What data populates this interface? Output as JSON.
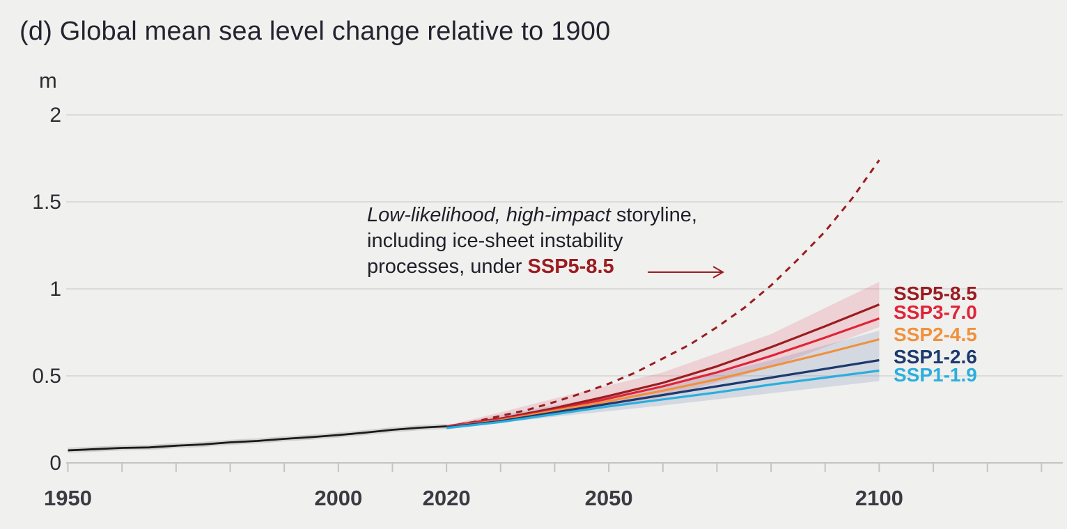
{
  "title": "(d) Global mean sea level change relative to 1900",
  "unit_label": "m",
  "annotation": {
    "line1_italic": "Low-likelihood, high-impact",
    "line1_rest": " storyline,",
    "line2": "including ice-sheet instability",
    "line3_prefix": "processes, under ",
    "line3_scenario": "SSP5-8.5"
  },
  "colors": {
    "background": "#f0f0ee",
    "gridline": "#dbdbd9",
    "axis": "#c4c4c2",
    "text": "#242430",
    "tick_label": "#3a3a42",
    "historical_line": "#1a1a1a",
    "historical_band": "rgba(0,0,0,0.12)",
    "storyline_red": "#9b1c20",
    "pink_band": "rgba(228,60,85,0.17)",
    "blue_band": "rgba(90,110,165,0.18)"
  },
  "chart_data": {
    "type": "line",
    "title": "(d) Global mean sea level change relative to 1900",
    "xlabel": "",
    "ylabel": "m",
    "xlim": [
      1950,
      2130
    ],
    "ylim": [
      0,
      2.15
    ],
    "yticks": [
      0,
      0.5,
      1,
      1.5,
      2
    ],
    "ytick_labels": [
      "0",
      "0.5",
      "1",
      "1.5",
      "2"
    ],
    "xtick_labels": [
      1950,
      2000,
      2020,
      2050,
      2100
    ],
    "xticks_minor_start": 1950,
    "xticks_minor_end": 2130,
    "xticks_minor_step": 10,
    "grid": "horizontal",
    "legend_position": "right-of-line-ends",
    "historical": {
      "name": "observed",
      "color": "#1a1a1a",
      "band_halfwidth_m": 0.015,
      "x": [
        1950,
        1955,
        1960,
        1965,
        1970,
        1975,
        1980,
        1985,
        1990,
        1995,
        2000,
        2005,
        2010,
        2015,
        2020
      ],
      "values": [
        0.072,
        0.079,
        0.086,
        0.089,
        0.099,
        0.106,
        0.118,
        0.126,
        0.138,
        0.148,
        0.16,
        0.174,
        0.19,
        0.202,
        0.21
      ]
    },
    "x_projection": [
      2020,
      2030,
      2040,
      2050,
      2060,
      2070,
      2080,
      2090,
      2100
    ],
    "series": [
      {
        "name": "SSP5-8.5",
        "label": "SSP5-8.5",
        "color": "#9b1c20",
        "values": [
          0.21,
          0.255,
          0.315,
          0.385,
          0.46,
          0.555,
          0.665,
          0.785,
          0.91
        ]
      },
      {
        "name": "SSP3-7.0",
        "label": "SSP3-7.0",
        "color": "#e02438",
        "values": [
          0.21,
          0.25,
          0.305,
          0.37,
          0.44,
          0.52,
          0.615,
          0.72,
          0.83
        ]
      },
      {
        "name": "SSP2-4.5",
        "label": "SSP2-4.5",
        "color": "#f0913d",
        "values": [
          0.205,
          0.245,
          0.3,
          0.355,
          0.415,
          0.48,
          0.555,
          0.63,
          0.71
        ]
      },
      {
        "name": "SSP1-2.6",
        "label": "SSP1-2.6",
        "color": "#1c3a6e",
        "values": [
          0.205,
          0.24,
          0.29,
          0.34,
          0.39,
          0.44,
          0.49,
          0.54,
          0.59
        ]
      },
      {
        "name": "SSP1-1.9",
        "label": "SSP1-1.9",
        "color": "#2aaede",
        "values": [
          0.2,
          0.235,
          0.28,
          0.325,
          0.365,
          0.405,
          0.45,
          0.49,
          0.53
        ]
      }
    ],
    "storyline": {
      "name": "Low-likelihood, high-impact storyline under SSP5-8.5",
      "style": "dashed",
      "color": "#9b1c20",
      "x": [
        2020,
        2025,
        2030,
        2035,
        2040,
        2045,
        2050,
        2055,
        2060,
        2065,
        2070,
        2075,
        2080,
        2085,
        2090,
        2095,
        2100
      ],
      "values": [
        0.21,
        0.235,
        0.27,
        0.305,
        0.35,
        0.4,
        0.455,
        0.52,
        0.6,
        0.68,
        0.78,
        0.89,
        1.02,
        1.17,
        1.33,
        1.52,
        1.74
      ]
    },
    "bands": [
      {
        "name": "likely-range-upper-scenarios",
        "color": "rgba(228,60,85,0.17)",
        "x": [
          2020,
          2030,
          2040,
          2060,
          2080,
          2100
        ],
        "top": [
          0.215,
          0.29,
          0.37,
          0.52,
          0.74,
          1.04
        ],
        "bottom": [
          0.2,
          0.245,
          0.285,
          0.375,
          0.55,
          0.78
        ]
      },
      {
        "name": "likely-range-lower-scenarios",
        "color": "rgba(90,110,165,0.18)",
        "x": [
          2020,
          2030,
          2040,
          2060,
          2080,
          2100
        ],
        "top": [
          0.215,
          0.275,
          0.33,
          0.44,
          0.59,
          0.76
        ],
        "bottom": [
          0.195,
          0.23,
          0.265,
          0.33,
          0.4,
          0.47
        ]
      }
    ]
  }
}
